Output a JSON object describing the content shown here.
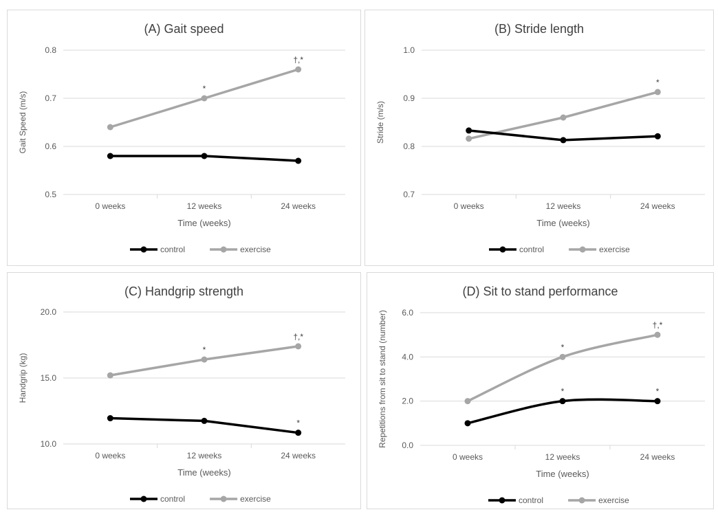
{
  "colors": {
    "control": "#000000",
    "exercise": "#a6a6a6",
    "grid": "#d9d9d9",
    "axis_text": "#595959",
    "title_text": "#404040"
  },
  "chart_data": [
    {
      "type": "line",
      "title": "(A) Gait speed",
      "xlabel": "Time (weeks)",
      "ylabel": "Gait Speed (m/s)",
      "categories": [
        "0 weeks",
        "12 weeks",
        "24 weeks"
      ],
      "yticks": [
        "0.5",
        "0.6",
        "0.7",
        "0.8"
      ],
      "ylim": [
        0.5,
        0.8
      ],
      "smooth": false,
      "legend_position": "bottom",
      "series": [
        {
          "name": "control",
          "values": [
            0.58,
            0.58,
            0.57
          ],
          "annotations": [
            "",
            "",
            ""
          ]
        },
        {
          "name": "exercise",
          "values": [
            0.64,
            0.7,
            0.76
          ],
          "annotations": [
            "",
            "*",
            "†,*"
          ]
        }
      ]
    },
    {
      "type": "line",
      "title": "(B) Stride length",
      "xlabel": "Time (weeks)",
      "ylabel": "Stride (m/s)",
      "categories": [
        "0 weeks",
        "12 weeks",
        "24 weeks"
      ],
      "yticks": [
        "0.7",
        "0.8",
        "0.9",
        "1.0"
      ],
      "ylim": [
        0.7,
        1.0
      ],
      "smooth": false,
      "legend_position": "bottom",
      "series": [
        {
          "name": "control",
          "values": [
            0.833,
            0.813,
            0.821
          ],
          "annotations": [
            "",
            "",
            ""
          ]
        },
        {
          "name": "exercise",
          "values": [
            0.816,
            0.86,
            0.913
          ],
          "annotations": [
            "",
            "",
            "*"
          ]
        }
      ]
    },
    {
      "type": "line",
      "title": "(C) Handgrip strength",
      "xlabel": "Time (weeks)",
      "ylabel": "Handgrip (kg)",
      "categories": [
        "0 weeks",
        "12 weeks",
        "24 weeks"
      ],
      "yticks": [
        "10.0",
        "15.0",
        "20.0"
      ],
      "ylim": [
        10,
        20
      ],
      "smooth": false,
      "legend_position": "bottom",
      "series": [
        {
          "name": "control",
          "values": [
            11.95,
            11.75,
            10.85
          ],
          "annotations": [
            "",
            "",
            "*"
          ]
        },
        {
          "name": "exercise",
          "values": [
            15.2,
            16.4,
            17.4
          ],
          "annotations": [
            "",
            "*",
            "†,*"
          ]
        }
      ]
    },
    {
      "type": "line",
      "title": "(D) Sit to stand performance",
      "xlabel": "Time (weeks)",
      "ylabel": "Repetitions from sit to stand (number)",
      "categories": [
        "0 weeks",
        "12 weeks",
        "24 weeks"
      ],
      "yticks": [
        "0.0",
        "2.0",
        "4.0",
        "6.0"
      ],
      "ylim": [
        0,
        6
      ],
      "smooth": true,
      "legend_position": "bottom",
      "series": [
        {
          "name": "control",
          "values": [
            1,
            2,
            2
          ],
          "annotations": [
            "",
            "*",
            "*"
          ]
        },
        {
          "name": "exercise",
          "values": [
            2,
            4,
            5
          ],
          "annotations": [
            "",
            "*",
            "†,*"
          ]
        }
      ]
    }
  ]
}
